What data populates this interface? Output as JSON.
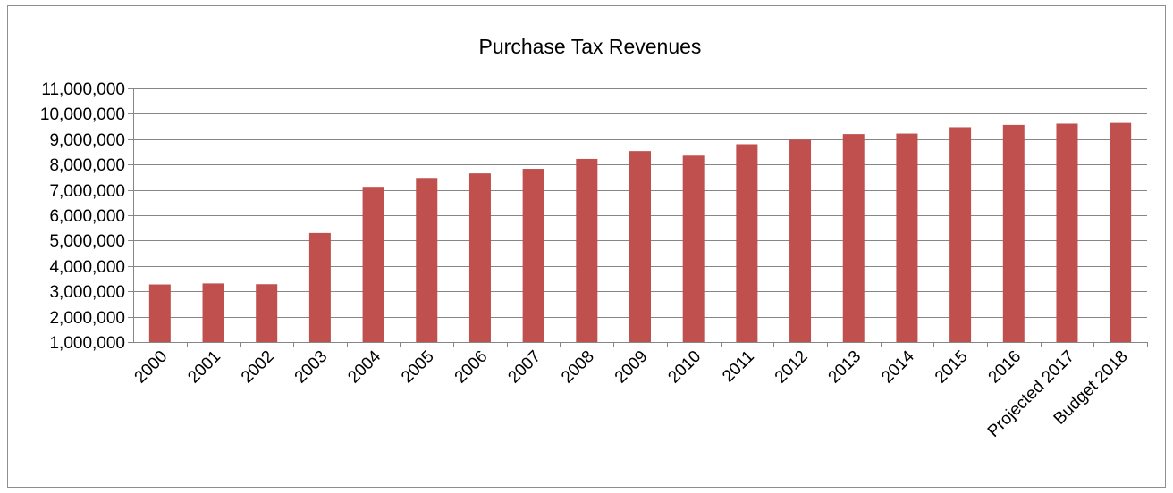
{
  "chart_data": {
    "type": "bar",
    "title": "Purchase Tax Revenues",
    "xlabel": "",
    "ylabel": "",
    "ylim": [
      1000000,
      11000000
    ],
    "y_ticks": [
      1000000,
      2000000,
      3000000,
      4000000,
      5000000,
      6000000,
      7000000,
      8000000,
      9000000,
      10000000,
      11000000
    ],
    "y_tick_labels": [
      "1,000,000",
      "2,000,000",
      "3,000,000",
      "4,000,000",
      "5,000,000",
      "6,000,000",
      "7,000,000",
      "8,000,000",
      "9,000,000",
      "10,000,000",
      "11,000,000"
    ],
    "categories": [
      "2000",
      "2001",
      "2002",
      "2003",
      "2004",
      "2005",
      "2006",
      "2007",
      "2008",
      "2009",
      "2010",
      "2011",
      "2012",
      "2013",
      "2014",
      "2015",
      "2016",
      "Projected 2017",
      "Budget 2018"
    ],
    "values": [
      3270000,
      3310000,
      3280000,
      5300000,
      7120000,
      7470000,
      7650000,
      7830000,
      8220000,
      8530000,
      8350000,
      8800000,
      8980000,
      9200000,
      9220000,
      9470000,
      9560000,
      9610000,
      9640000
    ],
    "bar_color": "#c0504d",
    "grid": true,
    "legend": "none"
  }
}
